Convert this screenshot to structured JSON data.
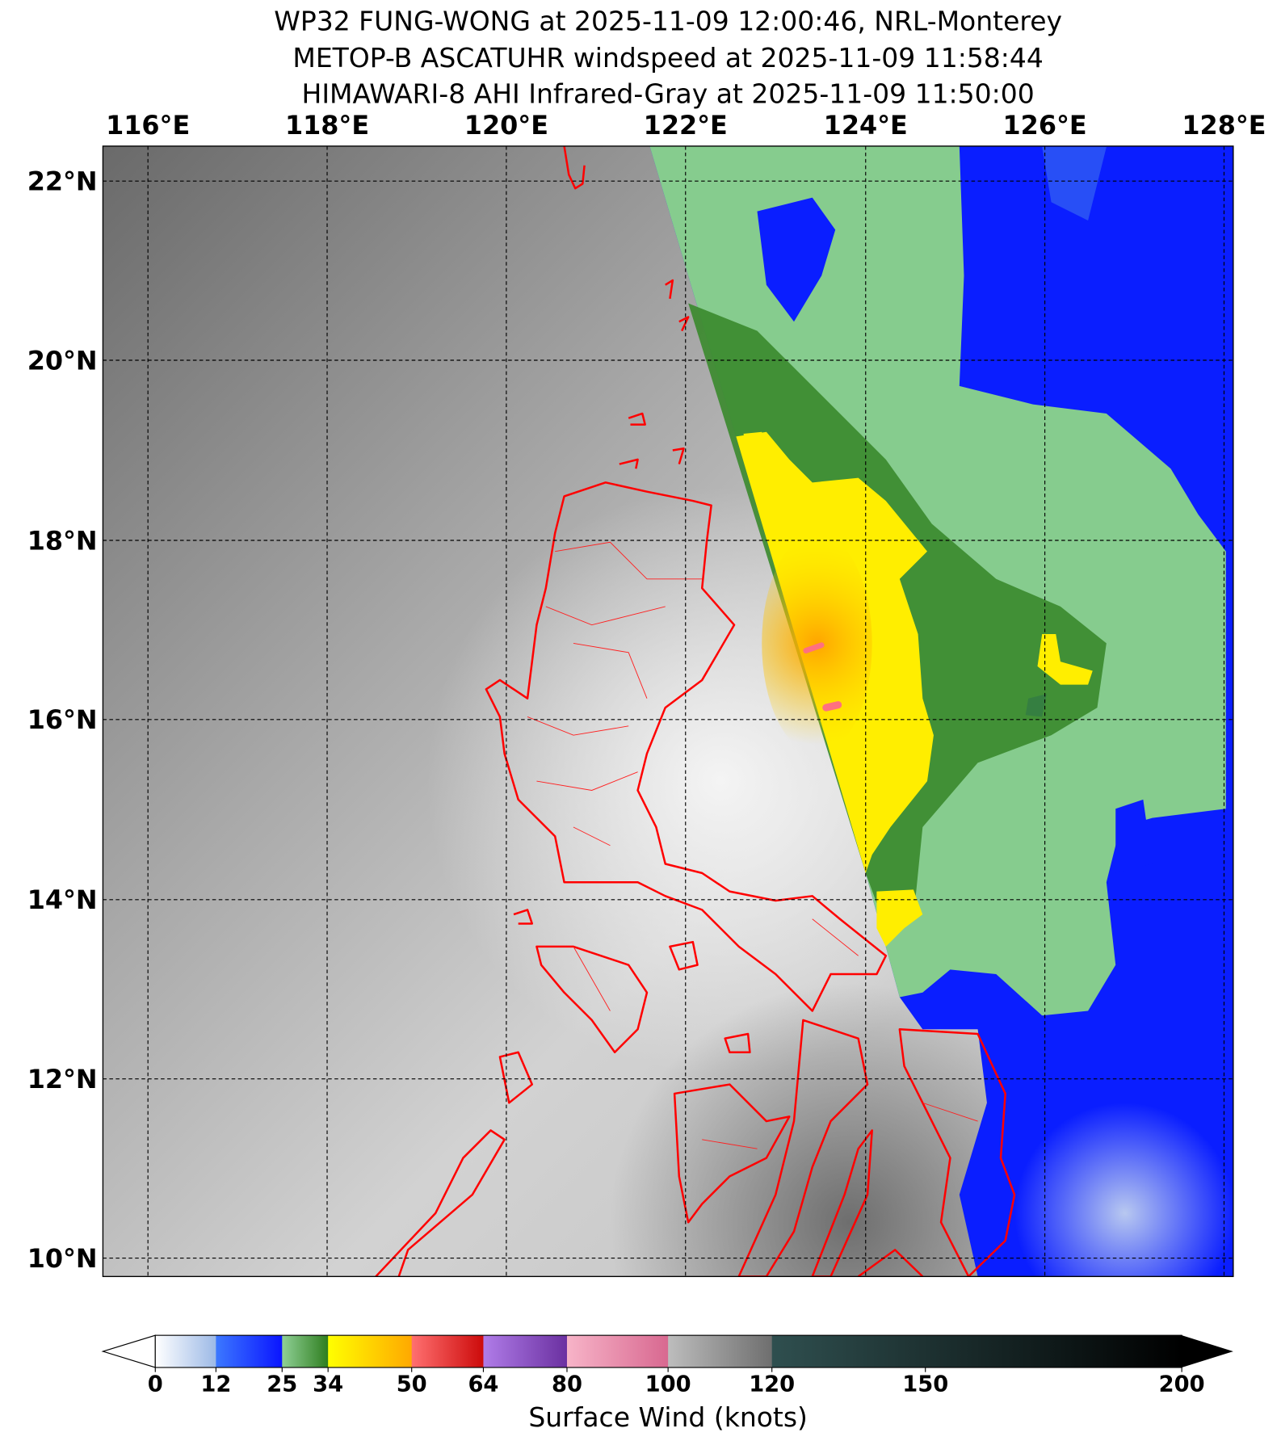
{
  "titles": [
    "WP32 FUNG-WONG at 2025-11-09 12:00:46, NRL-Monterey",
    "METOP-B ASCATUHR windspeed at 2025-11-09 11:58:44",
    "HIMAWARI-8 AHI Infrared-Gray at 2025-11-09 11:50:00"
  ],
  "map": {
    "lon_labels": [
      "116°E",
      "118°E",
      "120°E",
      "122°E",
      "124°E",
      "126°E",
      "128°E"
    ],
    "lat_labels": [
      "22°N",
      "20°N",
      "18°N",
      "16°N",
      "14°N",
      "12°N",
      "10°N"
    ],
    "extent": {
      "lon": [
        115.5,
        128.1
      ],
      "lat": [
        9.8,
        22.4
      ]
    },
    "coastline_color": "#ff0000"
  },
  "colorbar": {
    "label": "Surface Wind (knots)",
    "ticks": [
      "0",
      "12",
      "25",
      "34",
      "50",
      "64",
      "80",
      "100",
      "120",
      "150",
      "200"
    ],
    "segments": [
      {
        "range": [
          0,
          12
        ],
        "colors": [
          "#ffffff",
          "#9cb9e6"
        ]
      },
      {
        "range": [
          12,
          25
        ],
        "colors": [
          "#3c78ff",
          "#0a14ff"
        ]
      },
      {
        "range": [
          25,
          34
        ],
        "colors": [
          "#8fd095",
          "#2e7d1e"
        ]
      },
      {
        "range": [
          34,
          50
        ],
        "colors": [
          "#ffff00",
          "#ffa800"
        ]
      },
      {
        "range": [
          50,
          64
        ],
        "colors": [
          "#ff7070",
          "#cc0a0a"
        ]
      },
      {
        "range": [
          64,
          80
        ],
        "colors": [
          "#b07ce8",
          "#6a30a0"
        ]
      },
      {
        "range": [
          80,
          100
        ],
        "colors": [
          "#f7b4c8",
          "#d86890"
        ]
      },
      {
        "range": [
          100,
          120
        ],
        "colors": [
          "#bdbdbd",
          "#6e6e6e"
        ]
      },
      {
        "range": [
          120,
          200
        ],
        "colors": [
          "#2f4f4f",
          "#000000"
        ]
      }
    ],
    "extend_low_color": "#ffffff",
    "extend_high_color": "#000000"
  }
}
